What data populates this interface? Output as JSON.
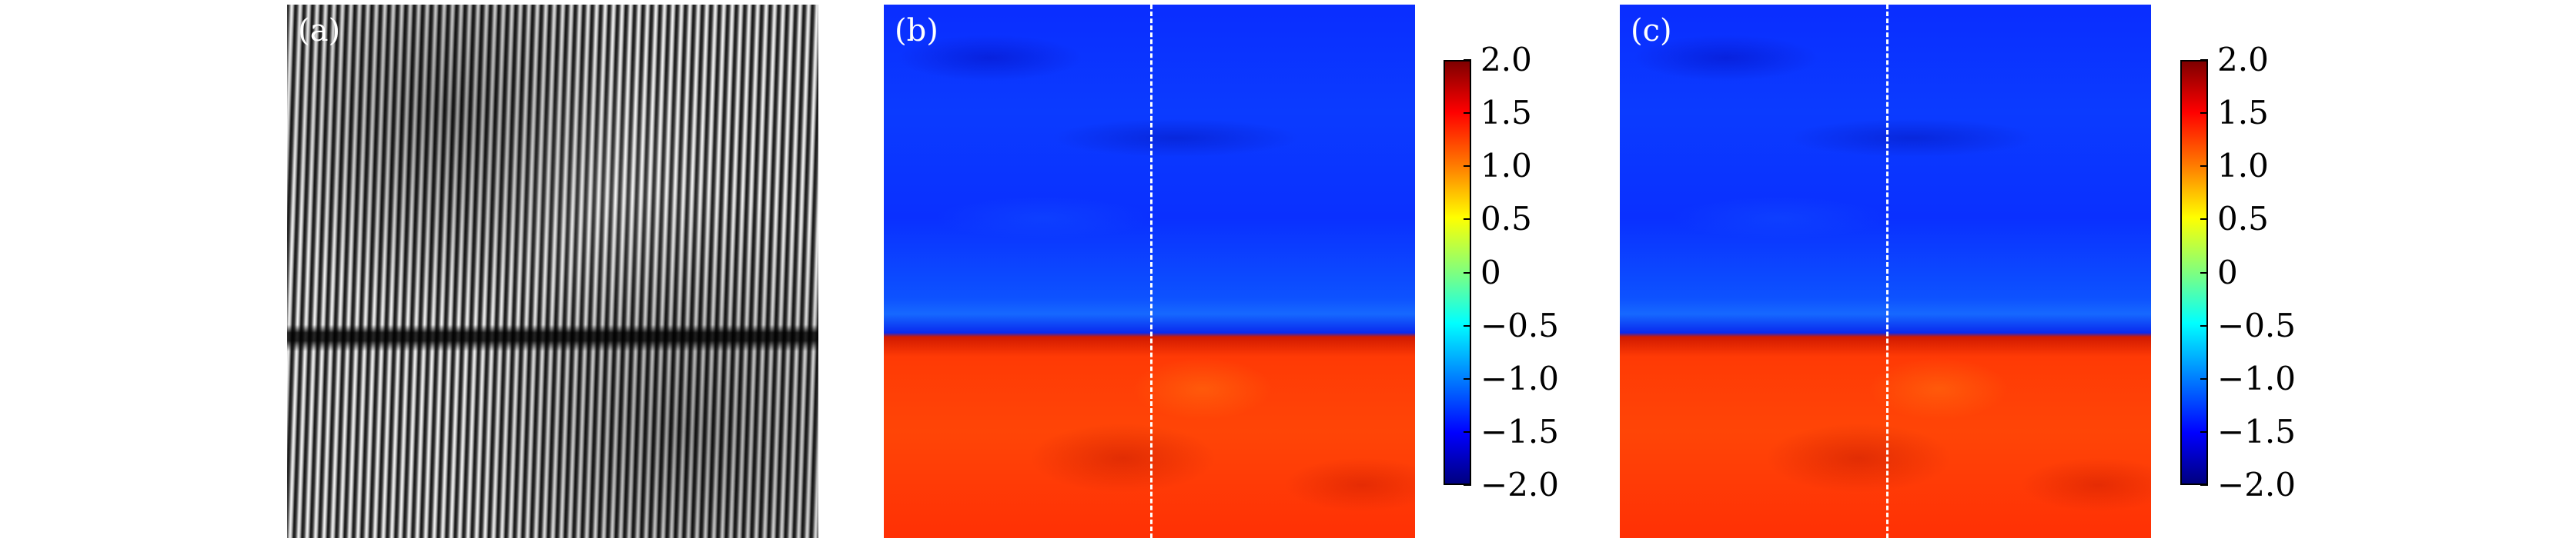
{
  "panels": [
    {
      "label": "(a)"
    },
    {
      "label": "(b)"
    },
    {
      "label": "(c)"
    }
  ],
  "colorbar": {
    "range": [
      -2.0,
      2.0
    ],
    "colormap": "jet",
    "ticks": [
      "2.0",
      "1.5",
      "1.0",
      "0.5",
      "0",
      "−0.5",
      "−1.0",
      "−1.5",
      "−2.0"
    ]
  }
}
